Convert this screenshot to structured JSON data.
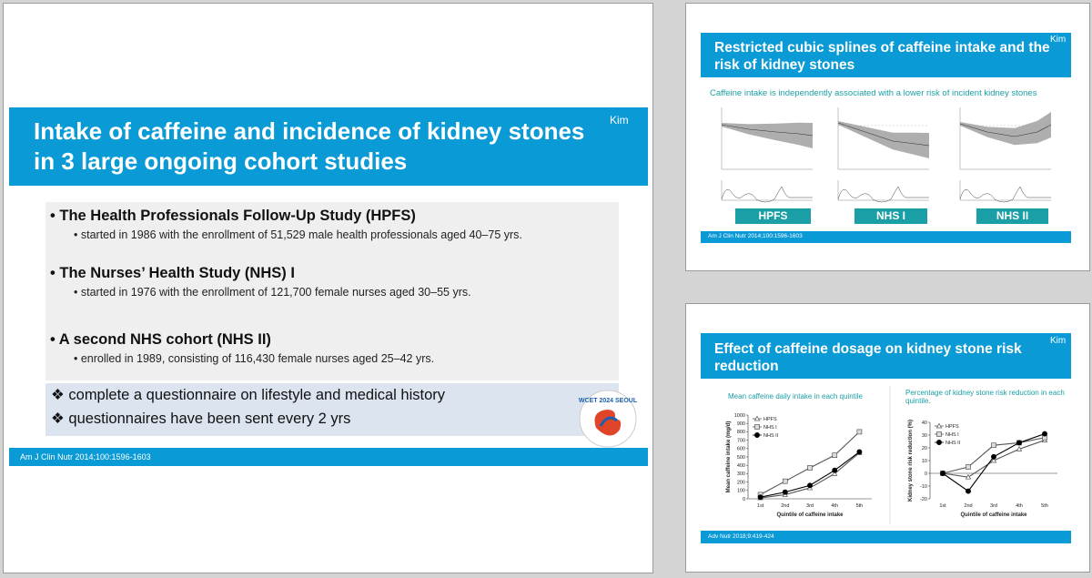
{
  "slides": [
    {
      "title": "Intake of caffeine and incidence of kidney stones in 3 large ongoing cohort studies",
      "author": "Kim",
      "bullets": [
        {
          "title": "The Health Professionals Follow-Up Study (HPFS)",
          "detail": "started in 1986 with the enrollment of 51,529 male health professionals aged 40–75 yrs."
        },
        {
          "title": "The Nurses’ Health Study (NHS) I",
          "detail": "started in 1976 with the enrollment of 121,700 female nurses aged 30–55 yrs."
        },
        {
          "title": "A second NHS cohort (NHS II)",
          "detail": "enrolled in 1989, consisting of 116,430 female nurses aged 25–42 yrs."
        }
      ],
      "notes": [
        "complete a questionnaire on lifestyle and medical history",
        "questionnaires have been sent every 2 yrs"
      ],
      "logo_text": "WCET 2024 SEOUL",
      "footer": "Am J Clin Nutr 2014;100:1596-1603"
    },
    {
      "title": "Restricted cubic splines of caffeine intake and the risk of kidney stones",
      "author": "Kim",
      "subtitle": "Caffeine intake is independently associated with a lower risk of incident kidney stones",
      "panels": [
        "HPFS",
        "NHS I",
        "NHS II"
      ],
      "footer": "Am J Clin Nutr 2014;100:1596-1603"
    },
    {
      "title": "Effect of caffeine dosage on kidney stone risk reduction",
      "author": "Kim",
      "footer": "Adv Nutr 2018;9:419-424",
      "charts": [
        {
          "type": "line",
          "title": "Mean caffeine daily intake in each quintile",
          "x_label": "Quintile of caffeine intake",
          "y_label": "Mean caffeine intake (mg/d)",
          "categories": [
            "1st",
            "2nd",
            "3rd",
            "4th",
            "5th"
          ],
          "ylim": [
            0,
            1000
          ],
          "yticks": [
            0,
            100,
            200,
            300,
            400,
            500,
            600,
            700,
            800,
            900,
            1000
          ],
          "series": [
            {
              "name": "HPFS",
              "color": "#555555",
              "marker": "triangle-open",
              "values": [
                10,
                50,
                130,
                300,
                550
              ]
            },
            {
              "name": "NHS I",
              "color": "#555555",
              "marker": "square-open",
              "values": [
                50,
                210,
                370,
                520,
                800
              ]
            },
            {
              "name": "NHS II",
              "color": "#000000",
              "marker": "circle-filled",
              "values": [
                20,
                80,
                160,
                340,
                560
              ]
            }
          ]
        },
        {
          "type": "line",
          "title": "Percentage of kidney stone risk reduction in each quintile.",
          "x_label": "Quintile of caffeine intake",
          "y_label": "Kidney stone risk reduction (%)",
          "categories": [
            "1st",
            "2nd",
            "3rd",
            "4th",
            "5th"
          ],
          "ylim": [
            -20,
            40
          ],
          "yticks": [
            -20,
            -10,
            0,
            10,
            20,
            30,
            40
          ],
          "series": [
            {
              "name": "HPFS",
              "color": "#555555",
              "marker": "triangle-open",
              "values": [
                0,
                -3,
                10,
                19,
                26
              ]
            },
            {
              "name": "NHS I",
              "color": "#555555",
              "marker": "square-open",
              "values": [
                0,
                5,
                22,
                24,
                28
              ]
            },
            {
              "name": "NHS II",
              "color": "#000000",
              "marker": "circle-filled",
              "values": [
                0,
                -14,
                13,
                24,
                31
              ]
            }
          ]
        }
      ]
    }
  ]
}
